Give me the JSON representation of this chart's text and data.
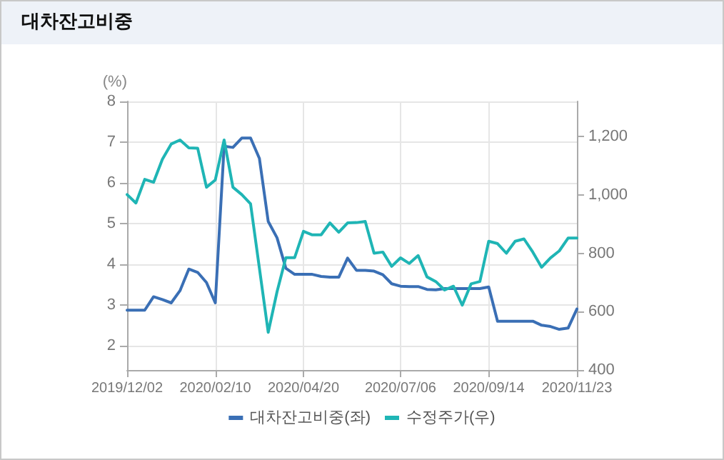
{
  "chart_data": {
    "type": "line",
    "title": "대차잔고비중",
    "ylabel": "(%)",
    "x": [
      "2019-12-02",
      "2019-12-09",
      "2019-12-16",
      "2019-12-23",
      "2019-12-30",
      "2020-01-06",
      "2020-01-13",
      "2020-01-20",
      "2020-01-27",
      "2020-02-03",
      "2020-02-10",
      "2020-02-17",
      "2020-02-24",
      "2020-03-02",
      "2020-03-09",
      "2020-03-16",
      "2020-03-23",
      "2020-03-30",
      "2020-04-06",
      "2020-04-13",
      "2020-04-20",
      "2020-04-27",
      "2020-05-04",
      "2020-05-11",
      "2020-05-18",
      "2020-05-25",
      "2020-06-01",
      "2020-06-08",
      "2020-06-15",
      "2020-06-22",
      "2020-06-29",
      "2020-07-06",
      "2020-07-13",
      "2020-07-20",
      "2020-07-27",
      "2020-08-03",
      "2020-08-10",
      "2020-08-17",
      "2020-08-24",
      "2020-08-31",
      "2020-09-07",
      "2020-09-14",
      "2020-09-21",
      "2020-09-28",
      "2020-10-05",
      "2020-10-12",
      "2020-10-19",
      "2020-10-26",
      "2020-11-02",
      "2020-11-09",
      "2020-11-16",
      "2020-11-23"
    ],
    "series": [
      {
        "name": "대차잔고비중(좌)",
        "color": "#3a6fb5",
        "values": [
          2.87,
          2.87,
          2.87,
          3.2,
          3.13,
          3.05,
          3.35,
          3.88,
          3.8,
          3.55,
          3.05,
          6.9,
          6.87,
          7.1,
          7.1,
          6.6,
          5.05,
          4.65,
          3.9,
          3.75,
          3.75,
          3.75,
          3.7,
          3.68,
          3.68,
          4.15,
          3.85,
          3.85,
          3.83,
          3.74,
          3.52,
          3.46,
          3.45,
          3.45,
          3.38,
          3.37,
          3.4,
          3.4,
          3.4,
          3.4,
          3.4,
          3.44,
          2.6,
          2.6,
          2.6,
          2.6,
          2.6,
          2.5,
          2.47,
          2.4,
          2.43,
          2.9
        ]
      },
      {
        "name": "수정주가(우)",
        "color": "#1fb5b5",
        "axis": "y2",
        "values": [
          1001,
          972,
          1053,
          1043,
          1122,
          1174,
          1188,
          1161,
          1160,
          1026,
          1051,
          1188,
          1026,
          1001,
          969,
          749,
          529,
          668,
          785,
          785,
          875,
          863,
          863,
          904,
          872,
          904,
          905,
          909,
          800,
          804,
          755,
          784,
          765,
          792,
          719,
          703,
          674,
          687,
          622,
          695,
          703,
          841,
          833,
          800,
          841,
          849,
          804,
          752,
          784,
          808,
          852,
          852
        ]
      }
    ],
    "xlim": [
      "2019-12-02",
      "2020-11-23"
    ],
    "xticks": [
      {
        "value": "2019-12-02",
        "label": "2019/12/02"
      },
      {
        "value": "2020-02-10",
        "label": "2020/02/10"
      },
      {
        "value": "2020-04-20",
        "label": "2020/04/20"
      },
      {
        "value": "2020-07-06",
        "label": "2020/07/06"
      },
      {
        "value": "2020-09-14",
        "label": "2020/09/14"
      },
      {
        "value": "2020-11-23",
        "label": "2020/11/23"
      }
    ],
    "ylim": [
      1.4,
      8
    ],
    "yticks": [
      2,
      3,
      4,
      5,
      6,
      7,
      8
    ],
    "y2lim": [
      400,
      1320
    ],
    "y2ticks": [
      {
        "value": 400,
        "label": "400"
      },
      {
        "value": 600,
        "label": "600"
      },
      {
        "value": 800,
        "label": "800"
      },
      {
        "value": 1000,
        "label": "1,000"
      },
      {
        "value": 1200,
        "label": "1,200"
      }
    ],
    "grid": true,
    "legend": "bottom",
    "marker": "none",
    "line_style": "solid"
  }
}
